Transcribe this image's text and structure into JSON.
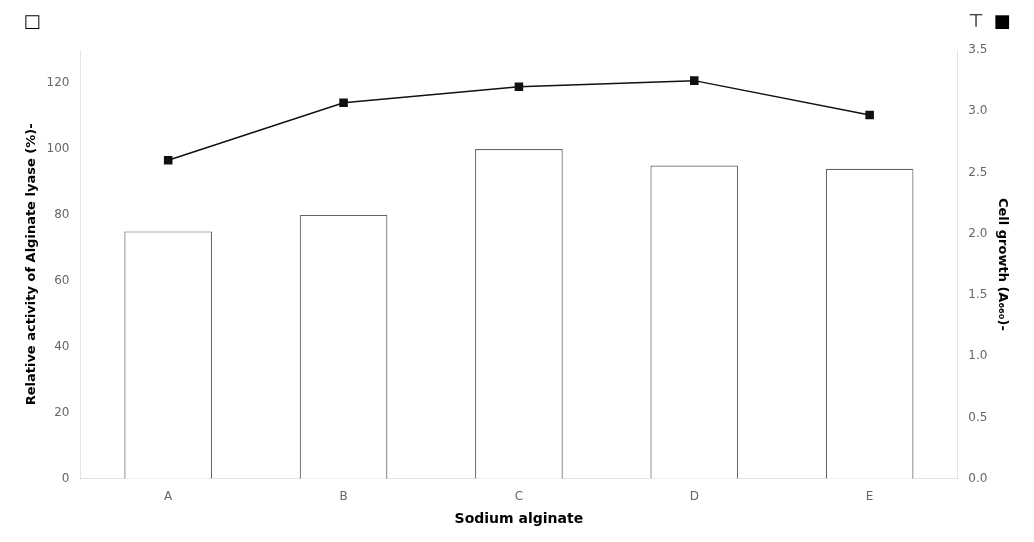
{
  "chart_data": {
    "type": "bar",
    "categories": [
      "A",
      "B",
      "C",
      "D",
      "E"
    ],
    "xlabel": "Sodium alginate",
    "ylabel": "Relative activity of Alginate lyase (%)-",
    "y2label": "Cell growth (A₆₆₀)-",
    "ylim": [
      0,
      130
    ],
    "yticks": [
      0,
      20,
      40,
      60,
      80,
      100,
      120
    ],
    "y2lim": [
      0,
      3.5
    ],
    "y2ticks": [
      {
        "value": 0,
        "label": "0.0"
      },
      0.5,
      {
        "value": 1,
        "label": "1.0"
      },
      1.5,
      {
        "value": 2,
        "label": "2.0"
      },
      2.5,
      {
        "value": 3,
        "label": "3.0"
      },
      3.5
    ],
    "grid": false,
    "series": [
      {
        "type": "bar",
        "color": "white",
        "values": [
          75,
          80,
          100,
          95,
          94
        ]
      },
      {
        "type": "line",
        "color": "#111111",
        "marker": "square",
        "axis": "y2",
        "values": [
          2.6,
          3.07,
          3.2,
          3.25,
          2.97
        ]
      }
    ],
    "annotations": [
      "□",
      "■",
      "⊤"
    ]
  }
}
